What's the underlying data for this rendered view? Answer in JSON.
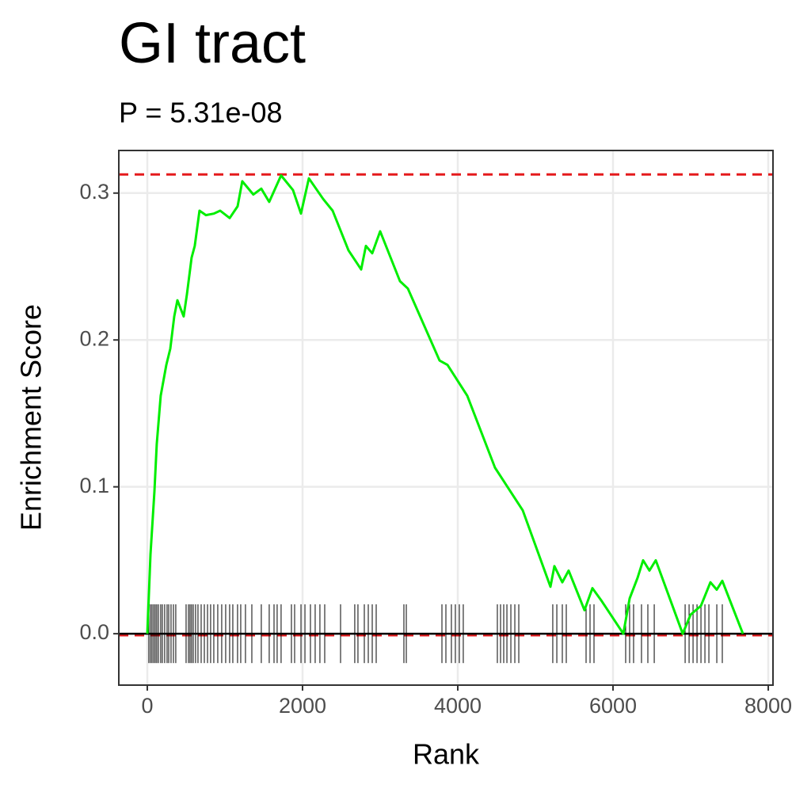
{
  "chart_data": {
    "type": "line",
    "title": "GI tract",
    "subtitle": "P = 5.31e-08",
    "x_label": "Rank",
    "y_label": "Enrichment Score",
    "color": "#00ee00",
    "x": [
      0,
      41,
      92,
      122,
      173,
      245,
      296,
      347,
      388,
      469,
      510,
      571,
      612,
      673,
      755,
      857,
      939,
      1061,
      1163,
      1224,
      1367,
      1469,
      1571,
      1724,
      1878,
      1980,
      2082,
      2265,
      2388,
      2592,
      2755,
      2816,
      2898,
      3000,
      3255,
      3357,
      3765,
      3867,
      4122,
      4480,
      4837,
      5194,
      5245,
      5347,
      5429,
      5633,
      5735,
      5857,
      6133,
      6214,
      6316,
      6388,
      6469,
      6551,
      6898,
      7000,
      7133,
      7255,
      7337,
      7408,
      7673
    ],
    "values": [
      0,
      0.054,
      0.097,
      0.129,
      0.162,
      0.183,
      0.194,
      0.216,
      0.227,
      0.216,
      0.231,
      0.256,
      0.264,
      0.288,
      0.285,
      0.286,
      0.288,
      0.283,
      0.291,
      0.308,
      0.299,
      0.303,
      0.294,
      0.312,
      0.302,
      0.286,
      0.31,
      0.296,
      0.288,
      0.261,
      0.248,
      0.264,
      0.259,
      0.274,
      0.24,
      0.235,
      0.186,
      0.183,
      0.162,
      0.113,
      0.084,
      0.032,
      0.046,
      0.035,
      0.043,
      0.016,
      0.031,
      0.022,
      0,
      0.024,
      0.038,
      0.05,
      0.043,
      0.05,
      0,
      0.013,
      0.019,
      0.035,
      0.03,
      0.036,
      0
    ],
    "hits": [
      20,
      41,
      61,
      82,
      102,
      122,
      143,
      173,
      194,
      224,
      255,
      276,
      306,
      337,
      367,
      500,
      531,
      551,
      571,
      592,
      622,
      653,
      694,
      735,
      776,
      816,
      857,
      908,
      959,
      1010,
      1061,
      1102,
      1163,
      1204,
      1265,
      1347,
      1469,
      1571,
      1633,
      1673,
      1724,
      1857,
      1898,
      1980,
      2031,
      2102,
      2163,
      2224,
      2286,
      2490,
      2673,
      2714,
      2796,
      2847,
      2898,
      2949,
      3306,
      3337,
      3796,
      3847,
      3918,
      3969,
      4020,
      4071,
      4510,
      4551,
      4592,
      4633,
      4684,
      4735,
      4786,
      5224,
      5276,
      5347,
      5398,
      5653,
      5704,
      5755,
      6163,
      6214,
      6265,
      6367,
      6449,
      6531,
      6929,
      6980,
      7031,
      7082,
      7133,
      7184,
      7235,
      7337,
      7408
    ],
    "hit_color": "#000000",
    "hit_height": 0.02,
    "reference_lines": [
      {
        "value": 0.3127,
        "color": "#e41a1c",
        "style": "dashed"
      },
      {
        "value": -0.001,
        "color": "#e41a1c",
        "style": "dashed"
      },
      {
        "value": 0,
        "color": "#000000",
        "style": "solid"
      }
    ],
    "xlim": [
      -367,
      8061
    ],
    "ylim": [
      -0.035,
      0.329
    ],
    "xticks": [
      0,
      2000,
      4000,
      6000,
      8000
    ],
    "yticks": [
      {
        "value": 0,
        "label": "0.0"
      },
      0.1,
      0.2,
      0.3
    ],
    "grid": true
  }
}
